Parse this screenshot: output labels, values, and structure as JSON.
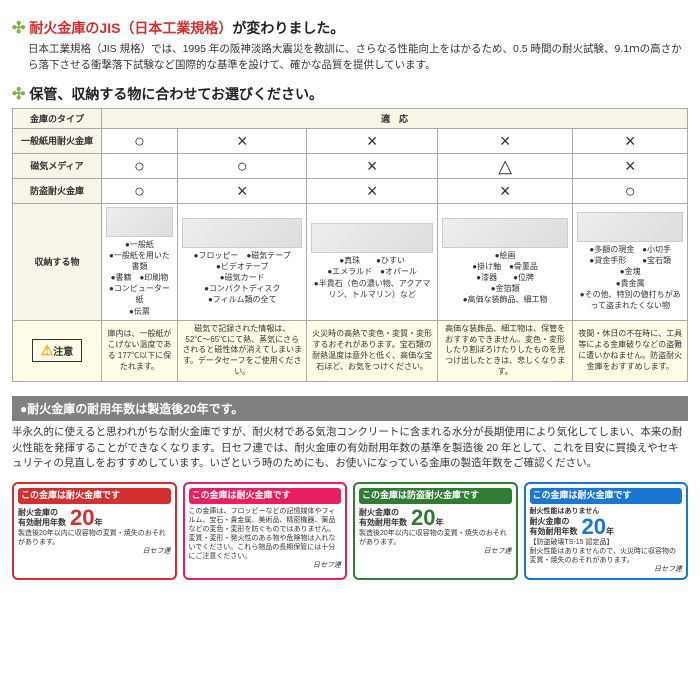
{
  "header1": {
    "prefix": "耐火金庫のJIS（日本工業規格）",
    "suffix": "が変わりました。"
  },
  "intro": "日本工業規格（JIS 規格）では、1995 年の阪神淡路大震災を教訓に、さらなる性能向上をはかるため、0.5 時間の耐火試験、9.1ｍの高さから落下させる衝撃落下試験など国際的な基準を設けて、確かな品質を提供しています。",
  "header2": "保管、収納する物に合わせてお選びください。",
  "table": {
    "head_type": "金庫のタイプ",
    "head_compat": "適　応",
    "rows": [
      "一般紙用耐火金庫",
      "磁気メディア",
      "防盗耐火金庫"
    ],
    "storageLabel": "収納する物",
    "cautionLabel": "注意",
    "symbols": [
      [
        "○",
        "×",
        "×",
        "×",
        "×"
      ],
      [
        "○",
        "○",
        "×",
        "△",
        "×"
      ],
      [
        "○",
        "×",
        "×",
        "×",
        "○"
      ]
    ],
    "storage": [
      "●一般紙\n●一般紙を用いた書類\n●書籍　●印刷物\n●コンピューター紙\n●伝票",
      "●フロッピー　●磁気テープ\n●ビデオテープ\n●磁気カード\n●コンパクトディスク\n●フィルム類の全て",
      "●真珠　　●ひすい\n●エメラルド　●オパール\n●半貴石（色の濃い物、アクアマリン、トルマリン）など",
      "●絵画\n●掛け軸　●骨董品\n●漆器　　●位牌\n●金箔類\n●高価な装飾品、細工物",
      "●多額の現金　●小切手\n●貸金手形　　●宝石類\n●金塊\n●貴金属\n●その他、特別の値打ちがあって盗まれたくない物"
    ],
    "caution": [
      "庫内は、一般紙がこげない温度である 177℃以下に保たれます。",
      "磁気で記録された情報は、52℃〜65℃にて熱、蒸気にさらされると磁性体が消えてしまいます。データセーフをご使用ください。",
      "火災時の高熱で変色・変質・変形するおそれがあります。宝石類の耐熱温度は意外と低く、高価な宝石ほど、お気をつけください。",
      "高価な装飾品、細工物は、保管をおすすめできません。変色・変形したり割ぼろけたりしたものを見つけ出したときは、悲しくなります。",
      "夜間・休日の不在時に、工具等による金庫破りなどの盗難に遭いかねません。防盗耐火金庫をおすすめします。"
    ]
  },
  "darkbar": "●耐火金庫の耐用年数は製造後20年です。",
  "longtext": "半永久的に使えると思われがちな耐火金庫ですが、耐火材である気泡コンクリートに含まれる水分が長期使用により気化してしまい、本来の耐火性能を発揮することができなくなります。日セフ連では、耐火金庫の有効耐用年数の基準を製造後 20 年として、これを目安に買換えやセキュリティの見直しをおすすめしています。いざという時のためにも、お使いになっている金庫の製造年数をご確認ください。",
  "cards": [
    {
      "cls": "card-red",
      "header": "この金庫は耐火金庫です",
      "line1": "耐火金庫の\n有効耐用年数",
      "big": "20",
      "unit": "年",
      "note": "製造後20年以内に収容物の変質・焼失のおそれがあります。",
      "brand": "日セフ連"
    },
    {
      "cls": "card-pink",
      "header": "この金庫は耐火金庫です",
      "body": "この金庫は、フロッピーなどの記憶媒体やフィルム、宝石・貴金属、美術品、精密機器、薬品などの変色・変形を防ぐものではありません。変質・変形・発火性のある物や危険物は入れないでください。これら物品の長期保管には十分にご注意ください。",
      "brand": "日セフ連"
    },
    {
      "cls": "card-green",
      "header": "この金庫は防盗耐火金庫です",
      "line1": "耐火金庫の\n有効耐用年数",
      "big": "20",
      "unit": "年",
      "note": "製造後20年以内に収容物の変質・焼失のおそれがあります。",
      "brand": "日セフ連"
    },
    {
      "cls": "card-blue",
      "header": "この金庫は耐火金庫です",
      "line1": "耐火性能はありません",
      "line2": "耐火金庫の\n有効耐用年数",
      "big": "20",
      "unit": "年",
      "note": "【防盗破壊TS-15 認定品】\n耐火性能はありませんので、火災時に収容物の変質・焼失のおそれがあります。",
      "brand": "日セフ連"
    }
  ]
}
